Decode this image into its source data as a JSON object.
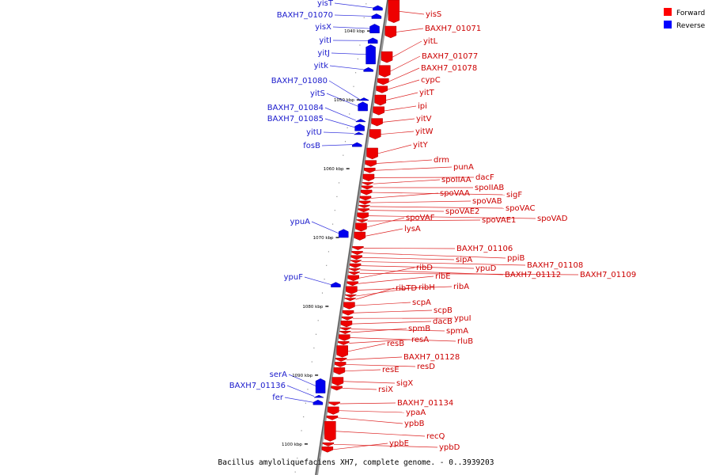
{
  "legend": {
    "forward": {
      "label": "Forward",
      "color": "#ff0000"
    },
    "reverse": {
      "label": "Reverse",
      "color": "#0000ff"
    }
  },
  "caption": "Bacillus amyloliquefaciens XH7, complete genome. - 0..3939203",
  "genome": {
    "view_start_kbp": 1035.5,
    "view_end_kbp": 1104.5,
    "ticks": [
      {
        "kbp": 1040,
        "label": "1040 kbp"
      },
      {
        "kbp": 1050,
        "label": "1050 kbp"
      },
      {
        "kbp": 1060,
        "label": "1060 kbp"
      },
      {
        "kbp": 1070,
        "label": "1070 kbp"
      },
      {
        "kbp": 1080,
        "label": "1080 kbp"
      },
      {
        "kbp": 1090,
        "label": "1090 kbp"
      },
      {
        "kbp": 1100,
        "label": "1100 kbp"
      }
    ]
  },
  "reverse_genes": [
    {
      "name": "yisT",
      "start": 1036.3,
      "end": 1037.0
    },
    {
      "name": "BAXH7_01070",
      "start": 1037.5,
      "end": 1038.2
    },
    {
      "name": "yisX",
      "start": 1039.0,
      "end": 1040.3
    },
    {
      "name": "yitI",
      "start": 1041.0,
      "end": 1041.8
    },
    {
      "name": "yitJ",
      "start": 1042.0,
      "end": 1044.8
    },
    {
      "name": "yitk",
      "start": 1045.3,
      "end": 1045.9
    },
    {
      "name": "BAXH7_01080",
      "start": 1049.7,
      "end": 1050.1
    },
    {
      "name": "yitS",
      "start": 1050.3,
      "end": 1051.6
    },
    {
      "name": "BAXH7_01084",
      "start": 1052.8,
      "end": 1053.2
    },
    {
      "name": "BAXH7_01085",
      "start": 1053.5,
      "end": 1054.5
    },
    {
      "name": "yitU",
      "start": 1054.7,
      "end": 1055.0
    },
    {
      "name": "fosB",
      "start": 1056.2,
      "end": 1056.8
    },
    {
      "name": "ypuA",
      "start": 1068.8,
      "end": 1070.0
    },
    {
      "name": "ypuF",
      "start": 1076.5,
      "end": 1077.2
    },
    {
      "name": "serA",
      "start": 1090.5,
      "end": 1092.6
    },
    {
      "name": "BAXH7_01136",
      "start": 1092.9,
      "end": 1093.2
    },
    {
      "name": "fer",
      "start": 1093.6,
      "end": 1094.3
    }
  ],
  "forward_genes": [
    {
      "name": "yisS",
      "start": 1035.5,
      "end": 1038.8
    },
    {
      "name": "BAXH7_01071",
      "start": 1039.3,
      "end": 1041.0
    },
    {
      "name": "yitL",
      "start": 1043.0,
      "end": 1044.6
    },
    {
      "name": "BAXH7_01077",
      "start": 1045.0,
      "end": 1046.7
    },
    {
      "name": "BAXH7_01078",
      "start": 1046.9,
      "end": 1047.8
    },
    {
      "name": "cypC",
      "start": 1048.0,
      "end": 1049.0
    },
    {
      "name": "yitT",
      "start": 1049.3,
      "end": 1050.8
    },
    {
      "name": "ipi",
      "start": 1051.0,
      "end": 1052.2
    },
    {
      "name": "yitV",
      "start": 1052.7,
      "end": 1053.8
    },
    {
      "name": "yitW",
      "start": 1054.3,
      "end": 1055.7
    },
    {
      "name": "yitY",
      "start": 1057.0,
      "end": 1058.6
    },
    {
      "name": "drm",
      "start": 1058.8,
      "end": 1059.7
    },
    {
      "name": "punA",
      "start": 1059.9,
      "end": 1060.6
    },
    {
      "name": "dacF",
      "start": 1060.8,
      "end": 1061.8
    },
    {
      "name": "spoIIAA",
      "start": 1062.0,
      "end": 1062.4
    },
    {
      "name": "spoIIAB",
      "start": 1062.5,
      "end": 1063.0
    },
    {
      "name": "sigF",
      "start": 1063.1,
      "end": 1063.8
    },
    {
      "name": "spoVAA",
      "start": 1064.0,
      "end": 1064.6
    },
    {
      "name": "spoVAB",
      "start": 1064.7,
      "end": 1065.2
    },
    {
      "name": "spoVAC",
      "start": 1065.3,
      "end": 1065.7
    },
    {
      "name": "spoVAE2",
      "start": 1065.8,
      "end": 1066.3
    },
    {
      "name": "spoVAD",
      "start": 1066.4,
      "end": 1067.3
    },
    {
      "name": "spoVAE1",
      "start": 1067.4,
      "end": 1067.8
    },
    {
      "name": "spoVAF",
      "start": 1067.9,
      "end": 1069.1
    },
    {
      "name": "lysA",
      "start": 1069.2,
      "end": 1070.4
    },
    {
      "name": "BAXH7_01106",
      "start": 1071.3,
      "end": 1071.8
    },
    {
      "name": "ppiB",
      "start": 1072.0,
      "end": 1072.5
    },
    {
      "name": "sipA",
      "start": 1072.6,
      "end": 1073.2
    },
    {
      "name": "BAXH7_01108",
      "start": 1073.3,
      "end": 1073.7
    },
    {
      "name": "ypuD",
      "start": 1073.8,
      "end": 1074.4
    },
    {
      "name": "BAXH7_01112",
      "start": 1074.5,
      "end": 1074.9
    },
    {
      "name": "BAXH7_01109",
      "start": 1075.0,
      "end": 1075.4
    },
    {
      "name": "ribD",
      "start": 1075.5,
      "end": 1076.3
    },
    {
      "name": "ribE",
      "start": 1076.4,
      "end": 1077.0
    },
    {
      "name": "ribA",
      "start": 1077.1,
      "end": 1078.2
    },
    {
      "name": "ribH",
      "start": 1078.3,
      "end": 1078.7
    },
    {
      "name": "ribTD",
      "start": 1078.8,
      "end": 1079.2
    },
    {
      "name": "scpA",
      "start": 1079.4,
      "end": 1080.4
    },
    {
      "name": "scpB",
      "start": 1080.6,
      "end": 1081.3
    },
    {
      "name": "ypuI",
      "start": 1081.5,
      "end": 1082.0
    },
    {
      "name": "dacB",
      "start": 1082.1,
      "end": 1083.0
    },
    {
      "name": "spmA",
      "start": 1083.1,
      "end": 1083.5
    },
    {
      "name": "spmB",
      "start": 1083.6,
      "end": 1084.0
    },
    {
      "name": "rluB",
      "start": 1084.1,
      "end": 1085.0
    },
    {
      "name": "resA",
      "start": 1085.1,
      "end": 1085.6
    },
    {
      "name": "resB",
      "start": 1085.7,
      "end": 1087.4
    },
    {
      "name": "BAXH7_01128",
      "start": 1087.5,
      "end": 1088.0
    },
    {
      "name": "resD",
      "start": 1088.1,
      "end": 1088.8
    },
    {
      "name": "resE",
      "start": 1088.9,
      "end": 1089.9
    },
    {
      "name": "sigX",
      "start": 1090.3,
      "end": 1091.5
    },
    {
      "name": "rsiX",
      "start": 1091.6,
      "end": 1092.2
    },
    {
      "name": "BAXH7_01134",
      "start": 1093.9,
      "end": 1094.4
    },
    {
      "name": "ypaA",
      "start": 1094.6,
      "end": 1095.7
    },
    {
      "name": "ypbB",
      "start": 1095.9,
      "end": 1096.5
    },
    {
      "name": "recQ",
      "start": 1096.7,
      "end": 1099.6
    },
    {
      "name": "ypbD",
      "start": 1099.8,
      "end": 1100.3
    },
    {
      "name": "ypbE",
      "start": 1100.4,
      "end": 1101.2
    }
  ]
}
